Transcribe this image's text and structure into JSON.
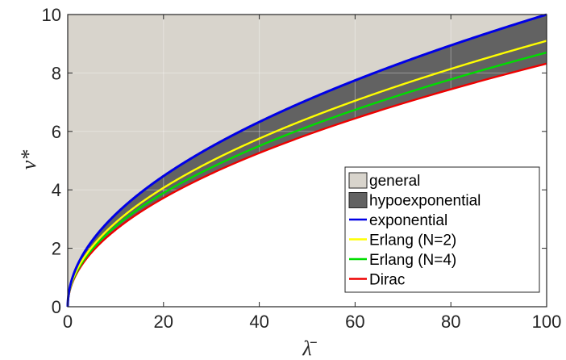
{
  "chart_data": {
    "type": "area",
    "xlabel": "λ̄",
    "ylabel": "v*",
    "xlim": [
      0,
      100
    ],
    "ylim": [
      0,
      10
    ],
    "x_ticks": [
      0,
      20,
      40,
      60,
      80,
      100
    ],
    "y_ticks": [
      0,
      2,
      4,
      6,
      8,
      10
    ],
    "grid": true,
    "legend_position": "bottom-right",
    "x": [
      0,
      1,
      2,
      5,
      10,
      20,
      30,
      40,
      50,
      60,
      70,
      80,
      90,
      100
    ],
    "series": [
      {
        "name": "general",
        "kind": "fill",
        "color": "#d8d4cc",
        "lower_series": "exponential",
        "upper": 10
      },
      {
        "name": "hypoexponential",
        "kind": "fill",
        "color": "#626262",
        "lower_series": "Dirac",
        "upper_series": "exponential"
      },
      {
        "name": "exponential",
        "kind": "line",
        "color": "#0000e6",
        "values": [
          0,
          1.0,
          1.41,
          2.24,
          3.16,
          4.47,
          5.48,
          6.32,
          7.07,
          7.75,
          8.37,
          8.94,
          9.49,
          10.0
        ]
      },
      {
        "name": "Erlang (N=2)",
        "kind": "line",
        "color": "#ffff00",
        "values": [
          0,
          0.91,
          1.29,
          2.04,
          2.88,
          4.07,
          4.99,
          5.76,
          6.44,
          7.05,
          7.62,
          8.14,
          8.64,
          9.1
        ]
      },
      {
        "name": "Erlang (N=4)",
        "kind": "line",
        "color": "#00dd00",
        "values": [
          0,
          0.87,
          1.23,
          1.95,
          2.75,
          3.89,
          4.77,
          5.5,
          6.15,
          6.74,
          7.28,
          7.78,
          8.25,
          8.7
        ]
      },
      {
        "name": "Dirac",
        "kind": "line",
        "color": "#ee0000",
        "values": [
          0,
          0.84,
          1.18,
          1.86,
          2.63,
          3.72,
          4.56,
          5.26,
          5.88,
          6.44,
          6.96,
          7.44,
          7.89,
          8.32
        ]
      }
    ]
  }
}
